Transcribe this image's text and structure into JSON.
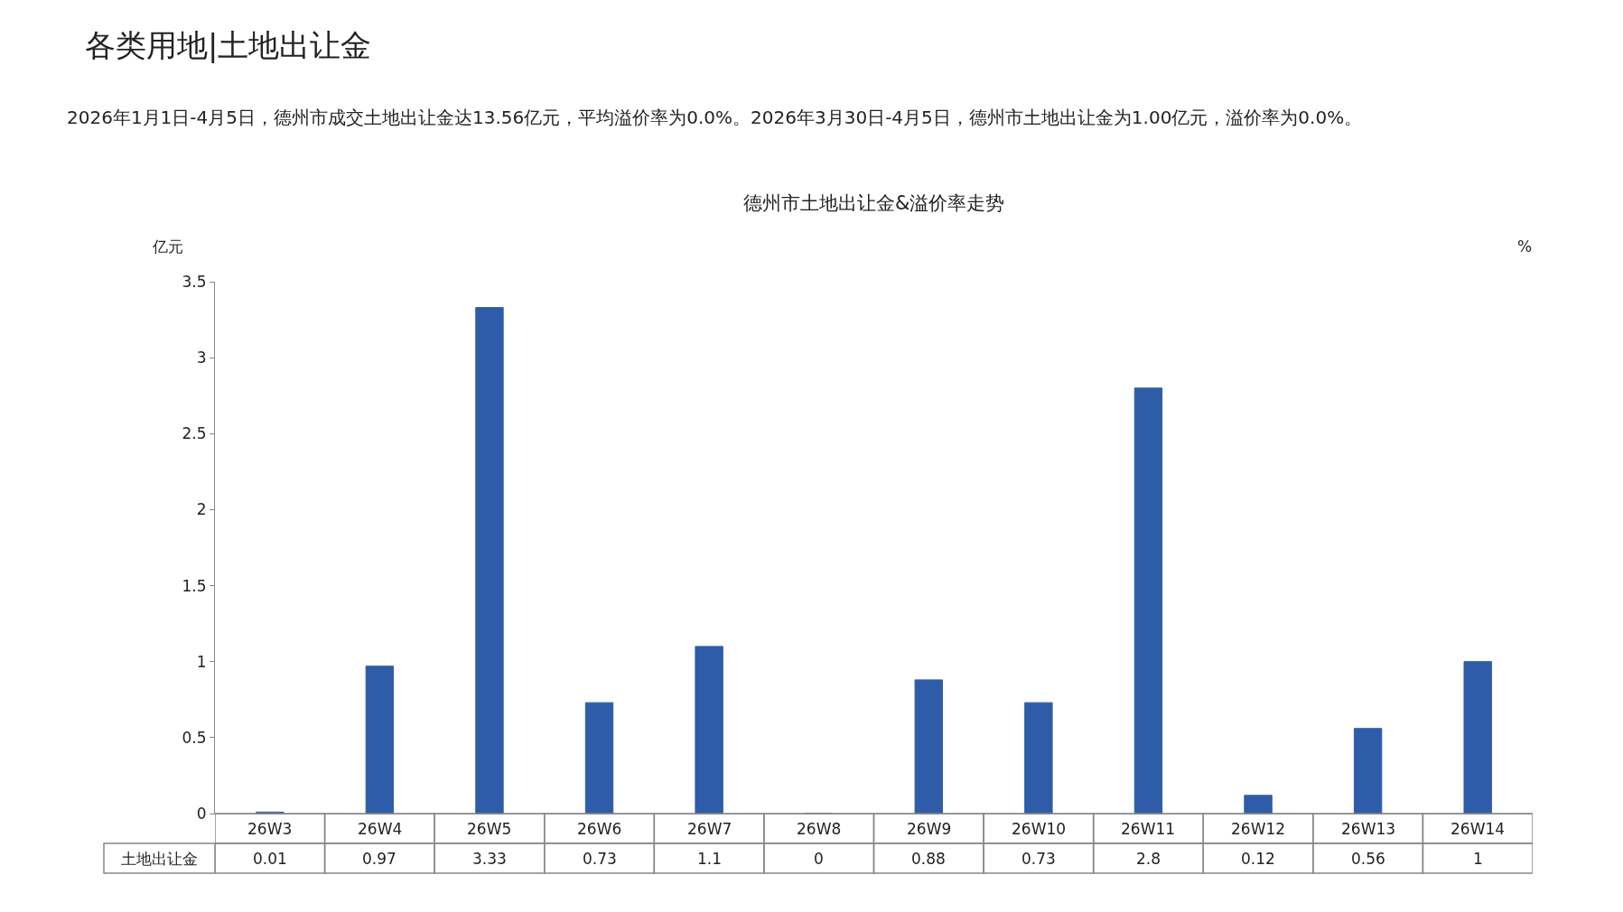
{
  "chart_data": {
    "type": "bar",
    "title": "各类用地|土地出让金",
    "annotations": [
      "2026年1月1日-4月5日，德州市成交土地出让金达13.56亿元，平均溢价率为0.0%。2026年3月30日-4月5日，德州市土地出让金为1.00亿元，溢价率为0.0%。"
    ],
    "subtitle": "德州市土地出让金&溢价率走势",
    "ylabel": "亿元",
    "y2label": "%",
    "categories": [
      "26W3",
      "26W4",
      "26W5",
      "26W6",
      "26W7",
      "26W8",
      "26W9",
      "26W10",
      "26W11",
      "26W12",
      "26W13",
      "26W14"
    ],
    "series": [
      {
        "name": "土地出让金",
        "color": "#2e5ca8",
        "values": [
          0.01,
          0.97,
          3.33,
          0.73,
          1.1,
          0,
          0.88,
          0.73,
          2.8,
          0.12,
          0.56,
          1
        ]
      }
    ],
    "ylim": [
      0,
      3.5
    ],
    "yticks": [
      0,
      0.5,
      1,
      1.5,
      2,
      2.5,
      3,
      3.5
    ],
    "data_labels": true,
    "legend": false
  }
}
